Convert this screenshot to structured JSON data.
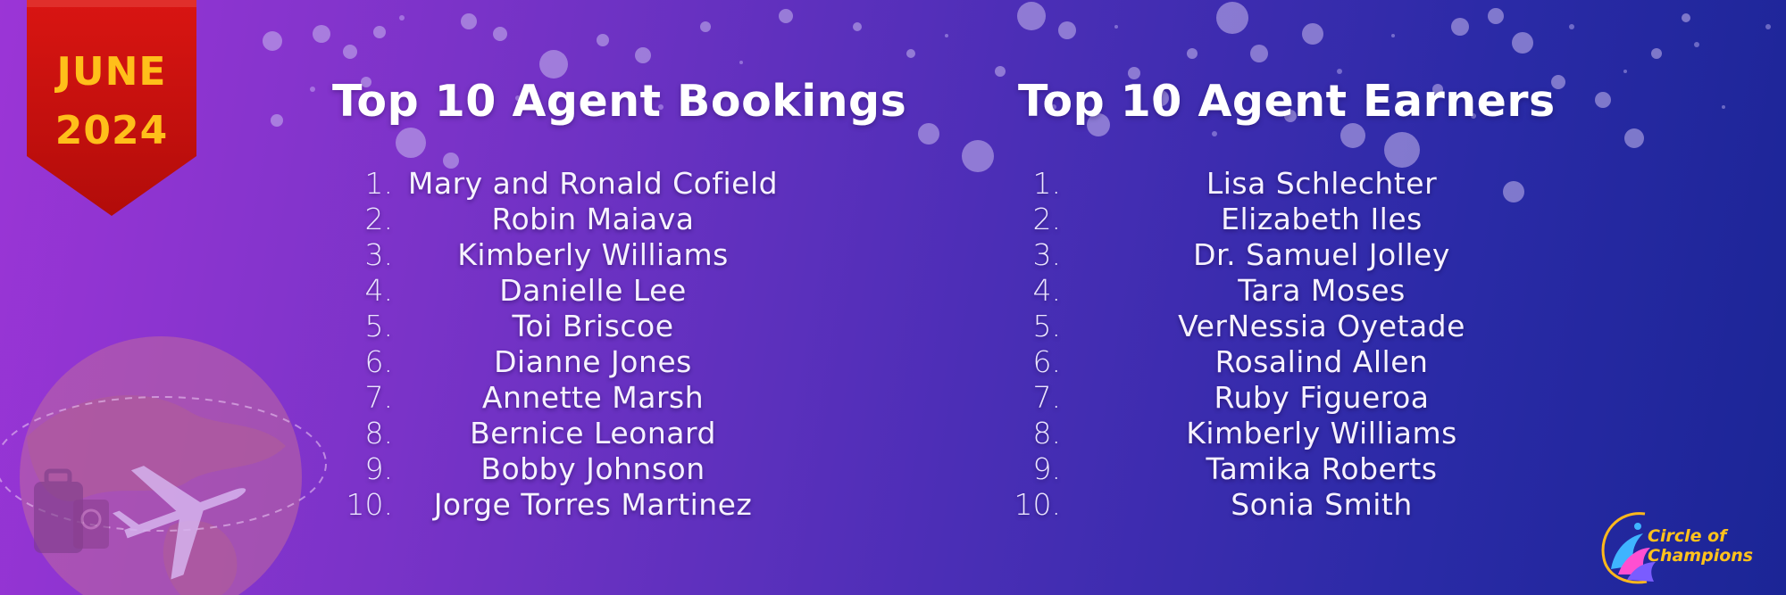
{
  "ribbon": {
    "month": "JUNE",
    "year": "2024"
  },
  "colors": {
    "ribbon": "#c4100c",
    "ribbon_text": "#ffbf1a",
    "logo_text": "#ffc21c"
  },
  "bookings": {
    "title": "Top 10 Agent Bookings",
    "items": [
      {
        "num": "1.",
        "name": "Mary and Ronald Cofield"
      },
      {
        "num": "2.",
        "name": "Robin Maiava"
      },
      {
        "num": "3.",
        "name": "Kimberly Williams"
      },
      {
        "num": "4.",
        "name": "Danielle Lee"
      },
      {
        "num": "5.",
        "name": "Toi Briscoe"
      },
      {
        "num": "6.",
        "name": "Dianne Jones"
      },
      {
        "num": "7.",
        "name": "Annette Marsh"
      },
      {
        "num": "8.",
        "name": "Bernice Leonard"
      },
      {
        "num": "9.",
        "name": "Bobby Johnson"
      },
      {
        "num": "10.",
        "name": "Jorge Torres Martinez"
      }
    ]
  },
  "earners": {
    "title": "Top 10 Agent Earners",
    "items": [
      {
        "num": "1.",
        "name": "Lisa Schlechter"
      },
      {
        "num": "2.",
        "name": "Elizabeth Iles"
      },
      {
        "num": "3.",
        "name": "Dr. Samuel Jolley"
      },
      {
        "num": "4.",
        "name": "Tara Moses"
      },
      {
        "num": "5.",
        "name": "VerNessia Oyetade"
      },
      {
        "num": "6.",
        "name": "Rosalind Allen"
      },
      {
        "num": "7.",
        "name": "Ruby Figueroa"
      },
      {
        "num": "8.",
        "name": "Kimberly Williams"
      },
      {
        "num": "9.",
        "name": "Tamika Roberts"
      },
      {
        "num": "10.",
        "name": "Sonia Smith"
      }
    ]
  },
  "logo": {
    "line1": "Circle of",
    "line2": "Champions",
    "icon": "wave-swirl-icon"
  },
  "decor": {
    "globe": "globe-icon",
    "airplane": "airplane-icon",
    "luggage": "luggage-icon",
    "passport": "passport-icon"
  }
}
